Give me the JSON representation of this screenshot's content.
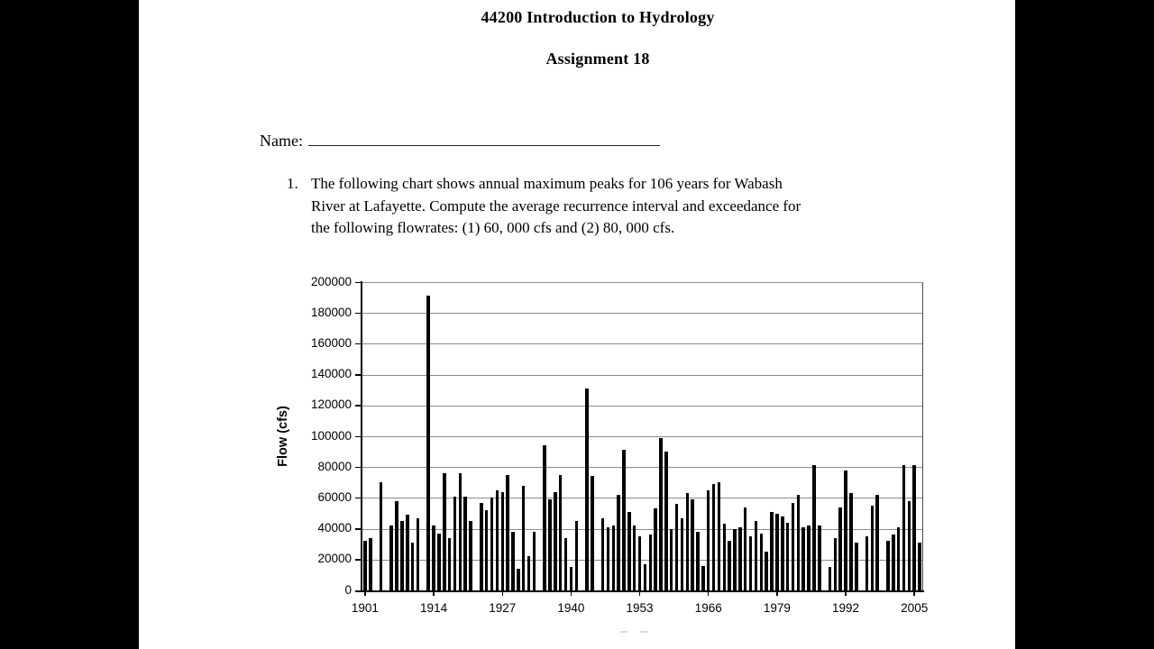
{
  "page": {
    "title": "44200 Introduction to Hydrology",
    "subtitle": "Assignment 18",
    "name_label": "Name:"
  },
  "question": {
    "number": "1.",
    "lines": [
      "The following chart shows annual maximum peaks for 106 years for Wabash",
      "River at Lafayette. Compute the average recurrence interval and  exceedance for",
      "the following flowrates: (1) 60, 000 cfs and (2) 80, 000 cfs."
    ],
    "full_text": "The following chart shows annual maximum peaks for 106 years for Wabash River at Lafayette. Compute the average recurrence interval and exceedance for the following flowrates: (1) 60, 000 cfs and (2) 80, 000 cfs."
  },
  "chart_data": {
    "type": "bar",
    "title": "",
    "xlabel": "",
    "ylabel": "Flow (cfs)",
    "ylim": [
      0,
      200000
    ],
    "y_tick_step": 20000,
    "y_ticks": [
      0,
      20000,
      40000,
      60000,
      80000,
      100000,
      120000,
      140000,
      160000,
      180000,
      200000
    ],
    "x_tick_labels": [
      "1901",
      "1914",
      "1927",
      "1940",
      "1953",
      "1966",
      "1979",
      "1992",
      "2005"
    ],
    "year_start": 1901,
    "year_end": 2006,
    "grid": "horizontal",
    "legend": "none",
    "bar_color": "#000000",
    "gridline_color": "#8c8c8c",
    "values": [
      32000,
      34000,
      0,
      70000,
      0,
      42000,
      58000,
      45000,
      49000,
      31000,
      47000,
      0,
      191000,
      42000,
      37000,
      76000,
      34000,
      61000,
      76000,
      61000,
      45000,
      0,
      57000,
      52000,
      60000,
      65000,
      64000,
      75000,
      38000,
      14000,
      68000,
      22000,
      38000,
      0,
      94000,
      59000,
      64000,
      75000,
      34000,
      15000,
      45000,
      0,
      131000,
      74000,
      0,
      47000,
      41000,
      42000,
      62000,
      91000,
      51000,
      42000,
      35000,
      17000,
      36000,
      53000,
      99000,
      90000,
      40000,
      56000,
      47000,
      63000,
      59000,
      38000,
      16000,
      65000,
      69000,
      70000,
      43000,
      32000,
      40000,
      41000,
      54000,
      35000,
      45000,
      37000,
      25000,
      51000,
      50000,
      48000,
      44000,
      57000,
      62000,
      41000,
      42000,
      81000,
      42000,
      0,
      15000,
      34000,
      54000,
      78000,
      63000,
      31000,
      0,
      35000,
      55000,
      62000,
      0,
      32000,
      36000,
      41000,
      81000,
      58000,
      81000,
      31000
    ]
  }
}
